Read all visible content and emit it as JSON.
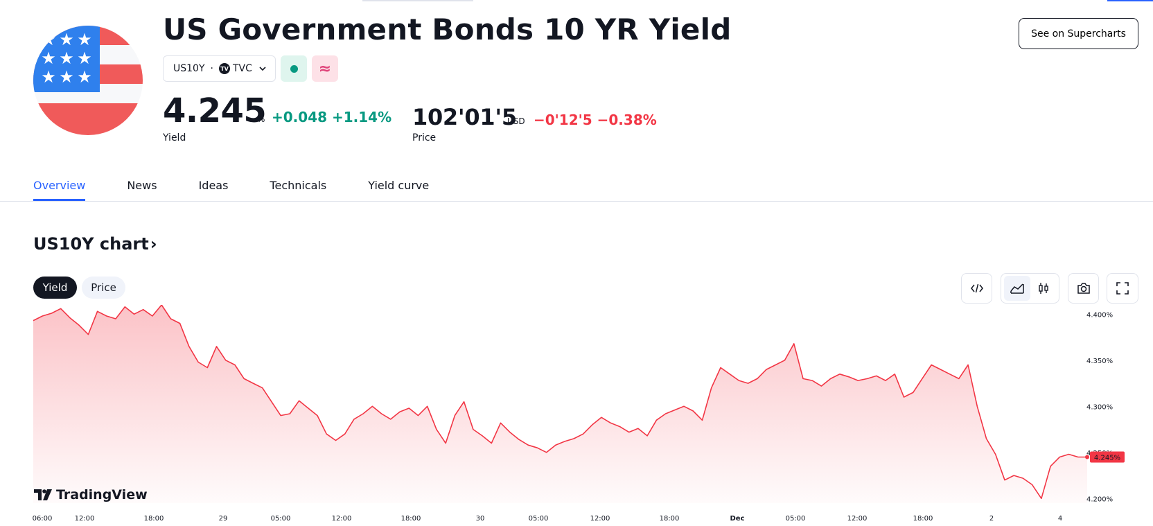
{
  "header": {
    "title": "US Government Bonds 10 YR Yield",
    "symbol": "US10Y",
    "exchange": "TVC",
    "exchange_badge": "TV",
    "delay_glyph": "≈",
    "supercharts_button": "See on Supercharts"
  },
  "quote": {
    "yield_value": "4.245",
    "yield_unit": "%",
    "yield_change": "+0.048 +1.14%",
    "yield_label": "Yield",
    "price_value": "102'01'5",
    "price_unit": "USD",
    "price_change": "−0'12'5 −0.38%",
    "price_label": "Price"
  },
  "tabs": [
    {
      "label": "Overview",
      "active": true
    },
    {
      "label": "News"
    },
    {
      "label": "Ideas"
    },
    {
      "label": "Technicals"
    },
    {
      "label": "Yield curve"
    }
  ],
  "chart_section": {
    "title": "US10Y chart",
    "arrow": "›",
    "toggle_yield": "Yield",
    "toggle_price": "Price",
    "brand": "TradingView"
  },
  "colors": {
    "up": "#089981",
    "down": "#f23645",
    "accent": "#2962ff",
    "line": "#f23645"
  },
  "chart_data": {
    "type": "area",
    "y_ticks": [
      "4.400%",
      "4.350%",
      "4.300%",
      "4.250%",
      "4.200%"
    ],
    "ylim": [
      4.195,
      4.41
    ],
    "x_ticks": [
      "06:00",
      "12:00",
      "18:00",
      "29",
      "05:00",
      "12:00",
      "18:00",
      "30",
      "05:00",
      "12:00",
      "18:00",
      "Dec",
      "05:00",
      "12:00",
      "18:00",
      "2",
      "4"
    ],
    "last_label": "4.245%",
    "last_value": 4.245,
    "grid": false,
    "series": [
      {
        "values": [
          4.393,
          4.398,
          4.401,
          4.406,
          4.396,
          4.388,
          4.378,
          4.403,
          4.398,
          4.395,
          4.408,
          4.4,
          4.405,
          4.398,
          4.41,
          4.395,
          4.39,
          4.365,
          4.348,
          4.342,
          4.365,
          4.35,
          4.345,
          4.33,
          4.325,
          4.32,
          4.305,
          4.29,
          4.292,
          4.306,
          4.298,
          4.29,
          4.27,
          4.263,
          4.27,
          4.286,
          4.292,
          4.3,
          4.292,
          4.286,
          4.294,
          4.298,
          4.29,
          4.3,
          4.275,
          4.26,
          4.29,
          4.305,
          4.275,
          4.268,
          4.26,
          4.282,
          4.272,
          4.264,
          4.258,
          4.255,
          4.25,
          4.258,
          4.262,
          4.265,
          4.27,
          4.28,
          4.288,
          4.282,
          4.278,
          4.272,
          4.276,
          4.268,
          4.285,
          4.292,
          4.296,
          4.3,
          4.295,
          4.285,
          4.32,
          4.342,
          4.335,
          4.328,
          4.325,
          4.33,
          4.34,
          4.345,
          4.35,
          4.368,
          4.33,
          4.328,
          4.322,
          4.33,
          4.335,
          4.332,
          4.328,
          4.33,
          4.333,
          4.328,
          4.335,
          4.31,
          4.315,
          4.33,
          4.345,
          4.34,
          4.335,
          4.33,
          4.345,
          4.3,
          4.265,
          4.248,
          4.22,
          4.225,
          4.222,
          4.215,
          4.2,
          4.235,
          4.245,
          4.248,
          4.245,
          4.245
        ]
      }
    ]
  }
}
